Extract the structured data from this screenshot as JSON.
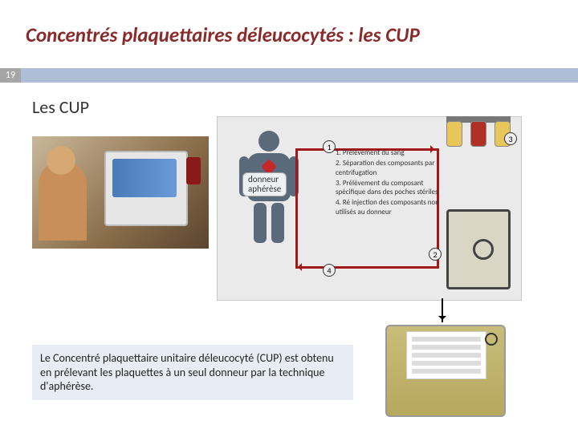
{
  "title": "Concentrés plaquettaires déleucocytés : les CUP",
  "page_number": "19",
  "subtitle": "Les CUP",
  "diagram": {
    "donor_label_line1": "donneur",
    "donor_label_line2": "aphérèse",
    "circles": {
      "n1": "1",
      "n2": "2",
      "n3": "3",
      "n4": "4"
    },
    "steps": [
      "1. Prélèvement du sang",
      "2. Séparation des composants par centrifugation",
      "3. Prélèvement du composant spécifique dans des poches stériles",
      "4. Ré injection des composants non utilisés au donneur"
    ],
    "colors": {
      "arrow": "#a01818",
      "figure": "#5b6a7a",
      "bg": "#eaeaea"
    }
  },
  "description": "Le Concentré plaquettaire unitaire déleucocyté (CUP) est obtenu en prélevant les plaquettes à un seul donneur par la technique d'aphérèse."
}
